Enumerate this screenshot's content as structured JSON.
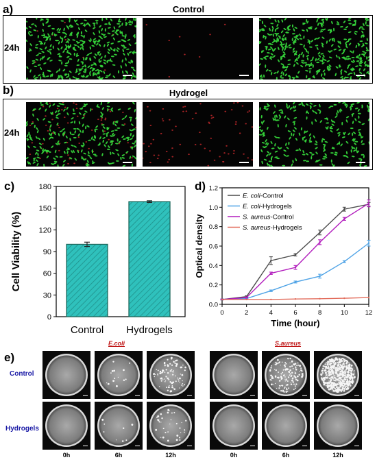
{
  "figure": {
    "panel_labels": {
      "a": "a)",
      "b": "b)",
      "c": "c)",
      "d": "d)",
      "e": "e)"
    },
    "panel_a": {
      "title": "Control",
      "row_label": "24h",
      "green_count": 380,
      "red_count": 8
    },
    "panel_b": {
      "title": "Hydrogel",
      "row_label": "24h",
      "green_count": 260,
      "red_count": 70
    },
    "panel_e": {
      "bacteria": [
        "E.coli",
        "S.aureus"
      ],
      "rows": [
        "Control",
        "Hydrogels"
      ],
      "times": [
        "0h",
        "6h",
        "12h"
      ],
      "colony_counts": {
        "E.coli": {
          "Control": [
            0,
            14,
            90
          ],
          "Hydrogels": [
            0,
            8,
            35
          ]
        },
        "S.aureus": {
          "Control": [
            0,
            140,
            600
          ],
          "Hydrogels": [
            0,
            0,
            0
          ]
        }
      }
    },
    "colors": {
      "bar_fill": "#2fc1bc",
      "bar_edge": "#1f6a5e",
      "live": "#35d43a",
      "dead": "#c0282a"
    }
  },
  "chart_data": [
    {
      "type": "bar",
      "categories": [
        "Control",
        "Hydrogels"
      ],
      "values": [
        100,
        159
      ],
      "errors": [
        3,
        1.2
      ],
      "ylabel": "Cell Viability (%)",
      "xlabel": "",
      "ylim": [
        0,
        180
      ],
      "yticks": [
        "0",
        "30",
        "60",
        "90",
        "120",
        "150",
        "180"
      ]
    },
    {
      "type": "line",
      "x": [
        0,
        2,
        4,
        6,
        8,
        10,
        12
      ],
      "xlabel": "Time (hour)",
      "ylabel": "Optical density",
      "xlim": [
        0,
        12
      ],
      "ylim": [
        0,
        1.2
      ],
      "xticks": [
        "0",
        "2",
        "4",
        "6",
        "8",
        "10",
        "12"
      ],
      "yticks": [
        "0.0",
        "0.2",
        "0.4",
        "0.6",
        "0.8",
        "1.0",
        "1.2"
      ],
      "legend_position": "top-left",
      "series": [
        {
          "name": "E. coli-Control",
          "italic": "E. coli",
          "rest": "-Control",
          "color": "#4a4a4a",
          "values": [
            0.05,
            0.08,
            0.45,
            0.51,
            0.74,
            0.98,
            1.03
          ],
          "errors": [
            0.005,
            0.008,
            0.04,
            0.012,
            0.025,
            0.02,
            0.02
          ]
        },
        {
          "name": "E. coli-Hydrogels",
          "italic": "E. coli",
          "rest": "-Hydrogels",
          "color": "#4ea3e6",
          "values": [
            0.05,
            0.06,
            0.14,
            0.23,
            0.29,
            0.44,
            0.63
          ],
          "errors": [
            0.004,
            0.005,
            0.008,
            0.01,
            0.02,
            0.01,
            0.03
          ]
        },
        {
          "name": "S. aureus-Control",
          "italic": "S. aureus",
          "rest": "-Control",
          "color": "#b21dbd",
          "values": [
            0.05,
            0.07,
            0.32,
            0.38,
            0.64,
            0.88,
            1.04
          ],
          "errors": [
            0.004,
            0.006,
            0.012,
            0.02,
            0.025,
            0.015,
            0.035
          ]
        },
        {
          "name": "S. aureus-Hydrogels",
          "italic": "S. aureus",
          "rest": "-Hydrogels",
          "color": "#e26b5a",
          "values": [
            0.05,
            0.05,
            0.05,
            0.055,
            0.058,
            0.063,
            0.07
          ],
          "errors": [
            0,
            0,
            0,
            0,
            0,
            0,
            0
          ]
        }
      ]
    }
  ]
}
